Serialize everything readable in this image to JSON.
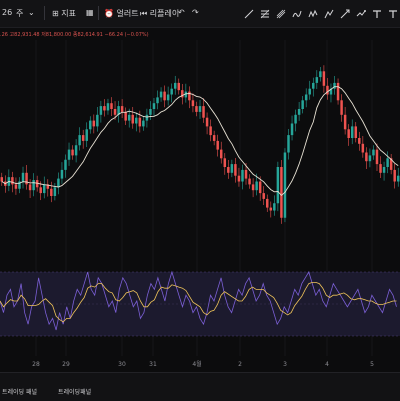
{
  "toolbar": {
    "left_num": "26",
    "left_arrow": "주",
    "indicators_label": "지표",
    "alert_label": "얼러트",
    "replay_label": "리플레이"
  },
  "ohlc": {
    "first": ".26",
    "high": "고82,931.48",
    "low": "저81,800.00",
    "close": "종82,614.91",
    "change": "−66.24 (−0.07%)"
  },
  "x_axis": {
    "ticks": [
      "28",
      "29",
      "30",
      "31",
      "4월",
      "2",
      "3",
      "4",
      "5"
    ]
  },
  "bottom_tabs": {
    "tab1": "트레이딩 패널",
    "tab2": "트레이딩패널"
  },
  "colors": {
    "up": "#26a69a",
    "down": "#ef5350",
    "ma_line": "#e8e2d4",
    "osc_line": "#7b5fd6",
    "signal_line": "#f0c45a",
    "osc_band": "#1c1a2e"
  },
  "chart_data": {
    "type": "candlestick",
    "price_closes": [
      0.3,
      0.27,
      0.33,
      0.28,
      0.25,
      0.3,
      0.36,
      0.28,
      0.24,
      0.31,
      0.26,
      0.22,
      0.28,
      0.25,
      0.2,
      0.26,
      0.32,
      0.38,
      0.45,
      0.52,
      0.48,
      0.55,
      0.62,
      0.58,
      0.66,
      0.72,
      0.68,
      0.76,
      0.82,
      0.79,
      0.84,
      0.8,
      0.76,
      0.82,
      0.78,
      0.72,
      0.76,
      0.7,
      0.74,
      0.68,
      0.72,
      0.76,
      0.8,
      0.84,
      0.88,
      0.92,
      0.86,
      0.9,
      0.94,
      0.98,
      0.93,
      0.88,
      0.92,
      0.86,
      0.82,
      0.78,
      0.82,
      0.74,
      0.68,
      0.62,
      0.58,
      0.52,
      0.46,
      0.4,
      0.36,
      0.42,
      0.34,
      0.3,
      0.38,
      0.32,
      0.28,
      0.24,
      0.3,
      0.22,
      0.18,
      0.12,
      0.1,
      0.15,
      0.4,
      0.05,
      0.5,
      0.62,
      0.7,
      0.76,
      0.8,
      0.86,
      0.9,
      0.94,
      0.98,
      1.02,
      1.06,
      0.96,
      0.9,
      0.94,
      0.98,
      0.86,
      0.76,
      0.66,
      0.6,
      0.68,
      0.6,
      0.56,
      0.5,
      0.44,
      0.48,
      0.52,
      0.42,
      0.36,
      0.4,
      0.46,
      0.38,
      0.3,
      0.34
    ],
    "osc_values": [
      0.5,
      0.3,
      0.6,
      0.7,
      0.4,
      0.5,
      0.8,
      0.3,
      0.1,
      0.4,
      0.5,
      0.9,
      0.6,
      0.3,
      0.1,
      0.2,
      0.0,
      0.3,
      0.1,
      0.4,
      0.2,
      0.5,
      0.7,
      0.6,
      0.8,
      1.0,
      0.7,
      0.6,
      0.9,
      0.8,
      0.6,
      0.4,
      0.5,
      0.3,
      0.7,
      0.9,
      0.8,
      0.6,
      0.4,
      0.5,
      0.2,
      0.3,
      0.6,
      0.8,
      0.7,
      0.9,
      0.7,
      0.5,
      0.8,
      1.0,
      0.8,
      0.6,
      0.4,
      0.6,
      0.5,
      0.3,
      0.4,
      0.2,
      0.1,
      0.3,
      0.6,
      0.5,
      0.7,
      0.9,
      0.6,
      0.4,
      0.3,
      0.5,
      0.7,
      0.6,
      0.8,
      0.9,
      0.7,
      0.5,
      0.6,
      0.8,
      0.6,
      0.5,
      0.3,
      0.1,
      0.2,
      0.4,
      0.3,
      0.5,
      0.7,
      0.6,
      0.8,
      0.9,
      1.0,
      0.8,
      0.6,
      0.7,
      0.5,
      0.4,
      0.6,
      0.8,
      0.7,
      0.6,
      0.5,
      0.4,
      0.5,
      0.6,
      0.7,
      0.5,
      0.3,
      0.4,
      0.6,
      0.5,
      0.4,
      0.3,
      0.5,
      0.7,
      0.6,
      0.4
    ]
  }
}
